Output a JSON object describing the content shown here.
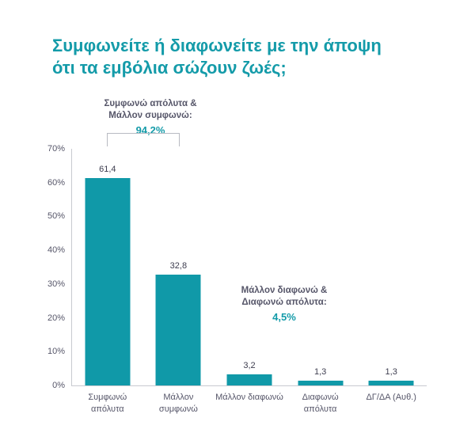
{
  "title": {
    "line1": "Συμφωνείτε ή διαφωνείτε με την άποψη",
    "line2": "ότι τα εμβόλια σώζουν ζωές;"
  },
  "annotations": {
    "agree": {
      "line1": "Συμφωνώ απόλυτα &",
      "line2": "Μάλλον συμφωνώ:",
      "value": "94,2%"
    },
    "disagree": {
      "line1": "Μάλλον διαφωνώ &",
      "line2": "Διαφωνώ απόλυτα:",
      "value": "4,5%"
    }
  },
  "colors": {
    "accent": "#149ba9",
    "bar": "#1099a8",
    "text_gray": "#565669",
    "axis_line": "#c8cad0",
    "bracket": "#b8bac2"
  },
  "chart_data": {
    "type": "bar",
    "title": "Συμφωνείτε ή διαφωνείτε με την άποψη ότι τα εμβόλια σώζουν ζωές;",
    "categories": [
      "Συμφωνώ απόλυτα",
      "Μάλλον συμφωνώ",
      "Μάλλον διαφωνώ",
      "Διαφωνώ απόλυτα",
      "ΔΓ/ΔΑ (Αυθ.)"
    ],
    "values": [
      61.4,
      32.8,
      3.2,
      1.3,
      1.3
    ],
    "value_labels": [
      "61,4",
      "32,8",
      "3,2",
      "1,3",
      "1,3"
    ],
    "xlabel": "",
    "ylabel": "",
    "ylim": [
      0,
      70
    ],
    "yticks": [
      "0%",
      "10%",
      "20%",
      "30%",
      "40%",
      "50%",
      "60%",
      "70%"
    ],
    "grid": false,
    "legend": "none",
    "bar_color": "#1099a8",
    "annotations": [
      {
        "text": "Συμφωνώ απόλυτα & Μάλλον συμφωνώ: 94,2%",
        "target_bars": [
          0,
          1
        ]
      },
      {
        "text": "Μάλλον διαφωνώ & Διαφωνώ απόλυτα: 4,5%",
        "target_bars": [
          2,
          3
        ]
      }
    ]
  }
}
